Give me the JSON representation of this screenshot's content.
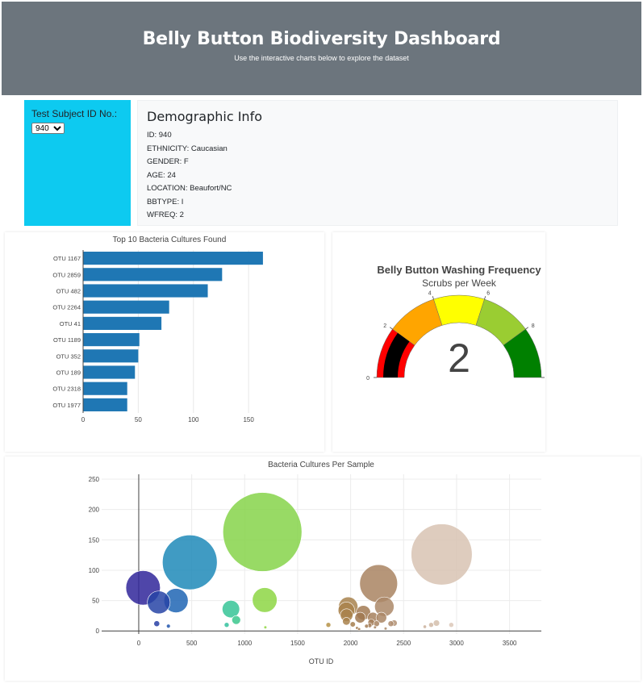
{
  "header": {
    "title": "Belly Button Biodiversity Dashboard",
    "subtitle": "Use the interactive charts below to explore the dataset"
  },
  "selector": {
    "label": "Test Subject ID No.:",
    "selected": "940"
  },
  "demographics": {
    "title": "Demographic Info",
    "rows": [
      "ID: 940",
      "ETHNICITY: Caucasian",
      "GENDER: F",
      "AGE: 24",
      "LOCATION: Beaufort/NC",
      "BBTYPE: I",
      "WFREQ: 2"
    ]
  },
  "colors": {
    "bar": "#1f77b4",
    "gauge_bands": [
      "#ff0000",
      "#ffa500",
      "#ffff00",
      "#9acd32",
      "#008000"
    ],
    "gauge_needle": "#000000"
  },
  "chart_data": [
    {
      "type": "bar",
      "orientation": "horizontal",
      "title": "Top 10 Bacteria Cultures Found",
      "categories": [
        "OTU 1167",
        "OTU 2859",
        "OTU 482",
        "OTU 2264",
        "OTU 41",
        "OTU 1189",
        "OTU 352",
        "OTU 189",
        "OTU 2318",
        "OTU 1977"
      ],
      "values": [
        163,
        126,
        113,
        78,
        71,
        51,
        50,
        47,
        40,
        40
      ],
      "xlim": [
        0,
        185
      ],
      "xticks": [
        0,
        50,
        100,
        150
      ],
      "grid": true
    },
    {
      "type": "gauge",
      "title": "Belly Button Washing Frequency",
      "subtitle": "Scrubs per Week",
      "value": 2,
      "range": [
        0,
        10
      ],
      "ticks": [
        0,
        2,
        4,
        6,
        8,
        10
      ],
      "bands": [
        [
          0,
          2
        ],
        [
          2,
          4
        ],
        [
          4,
          6
        ],
        [
          6,
          8
        ],
        [
          8,
          10
        ]
      ]
    },
    {
      "type": "scatter",
      "subtype": "bubble",
      "title": "Bacteria Cultures Per Sample",
      "xlabel": "OTU ID",
      "xlim": [
        -350,
        3800
      ],
      "ylim": [
        -5,
        258
      ],
      "xticks": [
        0,
        500,
        1000,
        1500,
        2000,
        2500,
        3000,
        3500
      ],
      "yticks": [
        0,
        50,
        100,
        150,
        200,
        250
      ],
      "grid": true,
      "points": [
        {
          "x": 41,
          "y": 71
        },
        {
          "x": 482,
          "y": 113
        },
        {
          "x": 1167,
          "y": 163
        },
        {
          "x": 2859,
          "y": 126
        },
        {
          "x": 2264,
          "y": 78
        },
        {
          "x": 1189,
          "y": 51
        },
        {
          "x": 352,
          "y": 50
        },
        {
          "x": 189,
          "y": 47
        },
        {
          "x": 2318,
          "y": 40
        },
        {
          "x": 1977,
          "y": 40
        },
        {
          "x": 870,
          "y": 36
        },
        {
          "x": 1960,
          "y": 34
        },
        {
          "x": 1962,
          "y": 26
        },
        {
          "x": 2120,
          "y": 30
        },
        {
          "x": 2090,
          "y": 22
        },
        {
          "x": 2210,
          "y": 22
        },
        {
          "x": 2290,
          "y": 22
        },
        {
          "x": 1960,
          "y": 16
        },
        {
          "x": 2195,
          "y": 14
        },
        {
          "x": 2245,
          "y": 12
        },
        {
          "x": 920,
          "y": 18
        },
        {
          "x": 2020,
          "y": 11
        },
        {
          "x": 2410,
          "y": 13
        },
        {
          "x": 2380,
          "y": 12
        },
        {
          "x": 2810,
          "y": 13
        },
        {
          "x": 2760,
          "y": 10
        },
        {
          "x": 2950,
          "y": 10
        },
        {
          "x": 1790,
          "y": 10
        },
        {
          "x": 830,
          "y": 10
        },
        {
          "x": 2180,
          "y": 9
        },
        {
          "x": 2150,
          "y": 8
        },
        {
          "x": 170,
          "y": 12
        },
        {
          "x": 280,
          "y": 8
        },
        {
          "x": 1195,
          "y": 6
        },
        {
          "x": 2230,
          "y": 6
        },
        {
          "x": 2700,
          "y": 7
        },
        {
          "x": 2060,
          "y": 5
        },
        {
          "x": 2330,
          "y": 4
        },
        {
          "x": 2080,
          "y": 3
        }
      ]
    }
  ]
}
